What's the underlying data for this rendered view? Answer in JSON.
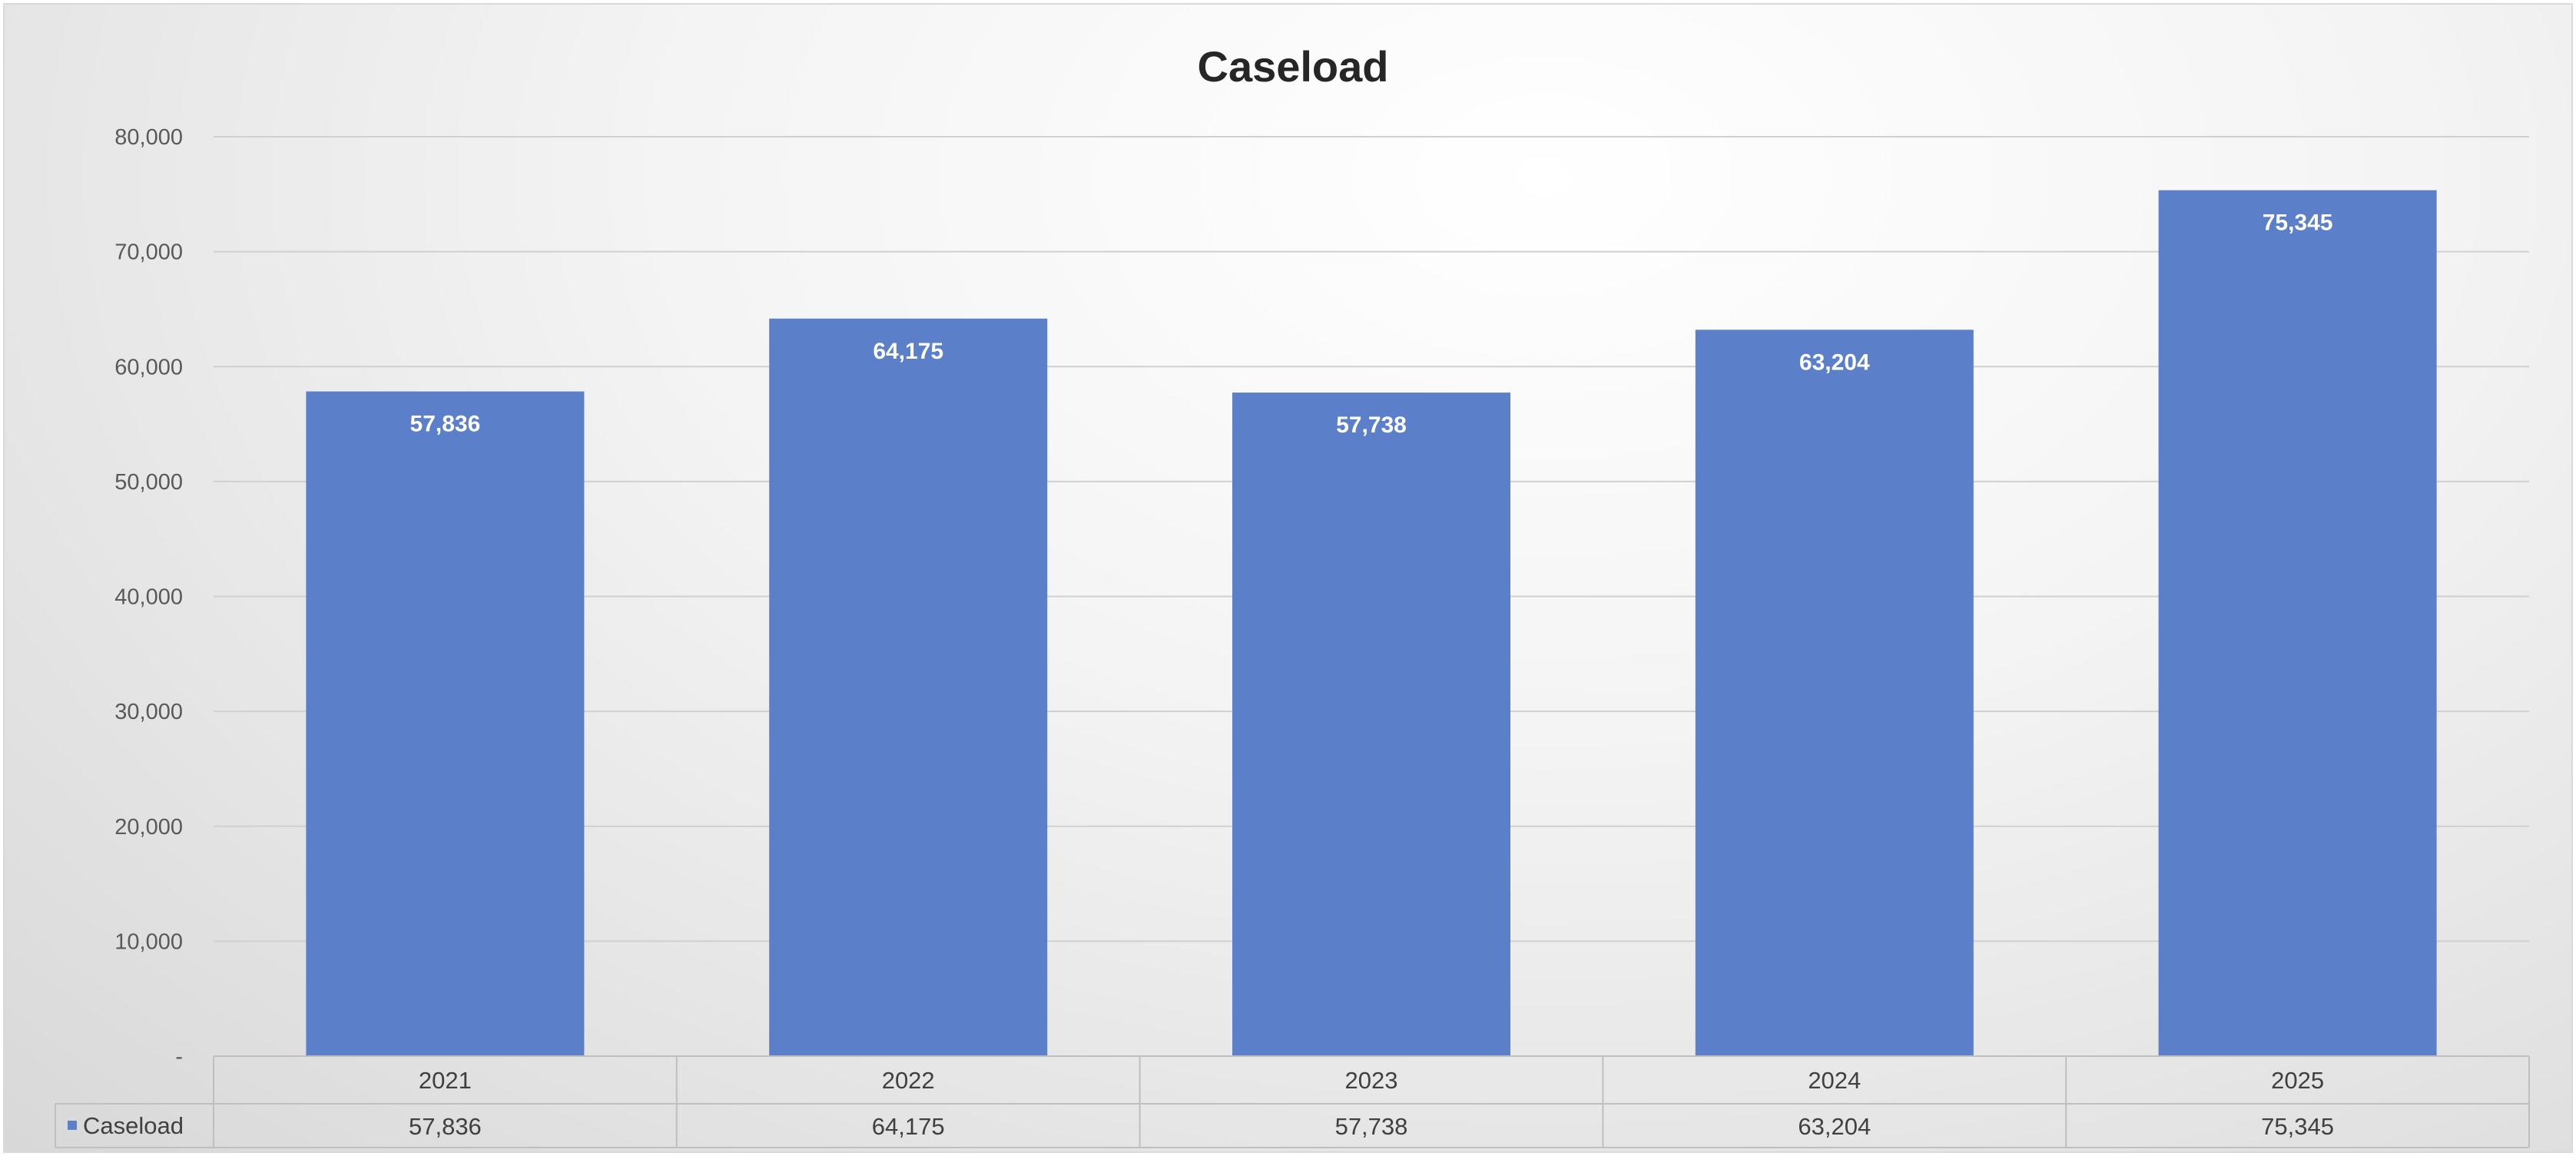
{
  "chart_data": {
    "type": "bar",
    "title": "Caseload",
    "xlabel": "",
    "ylabel": "",
    "categories": [
      "2021",
      "2022",
      "2023",
      "2024",
      "2025"
    ],
    "series": [
      {
        "name": "Caseload",
        "values": [
          57836,
          64175,
          57738,
          63204,
          75345
        ],
        "value_labels": [
          "57,836",
          "64,175",
          "57,738",
          "63,204",
          "75,345"
        ],
        "color": "#5b7fc9"
      }
    ],
    "ylim": [
      0,
      80000
    ],
    "y_ticks": [
      0,
      10000,
      20000,
      30000,
      40000,
      50000,
      60000,
      70000,
      80000
    ],
    "y_tick_labels": [
      "-",
      "10,000",
      "20,000",
      "30,000",
      "40,000",
      "50,000",
      "60,000",
      "70,000",
      "80,000"
    ],
    "grid": true,
    "data_labels": "inside-end",
    "legend": "data-table"
  }
}
